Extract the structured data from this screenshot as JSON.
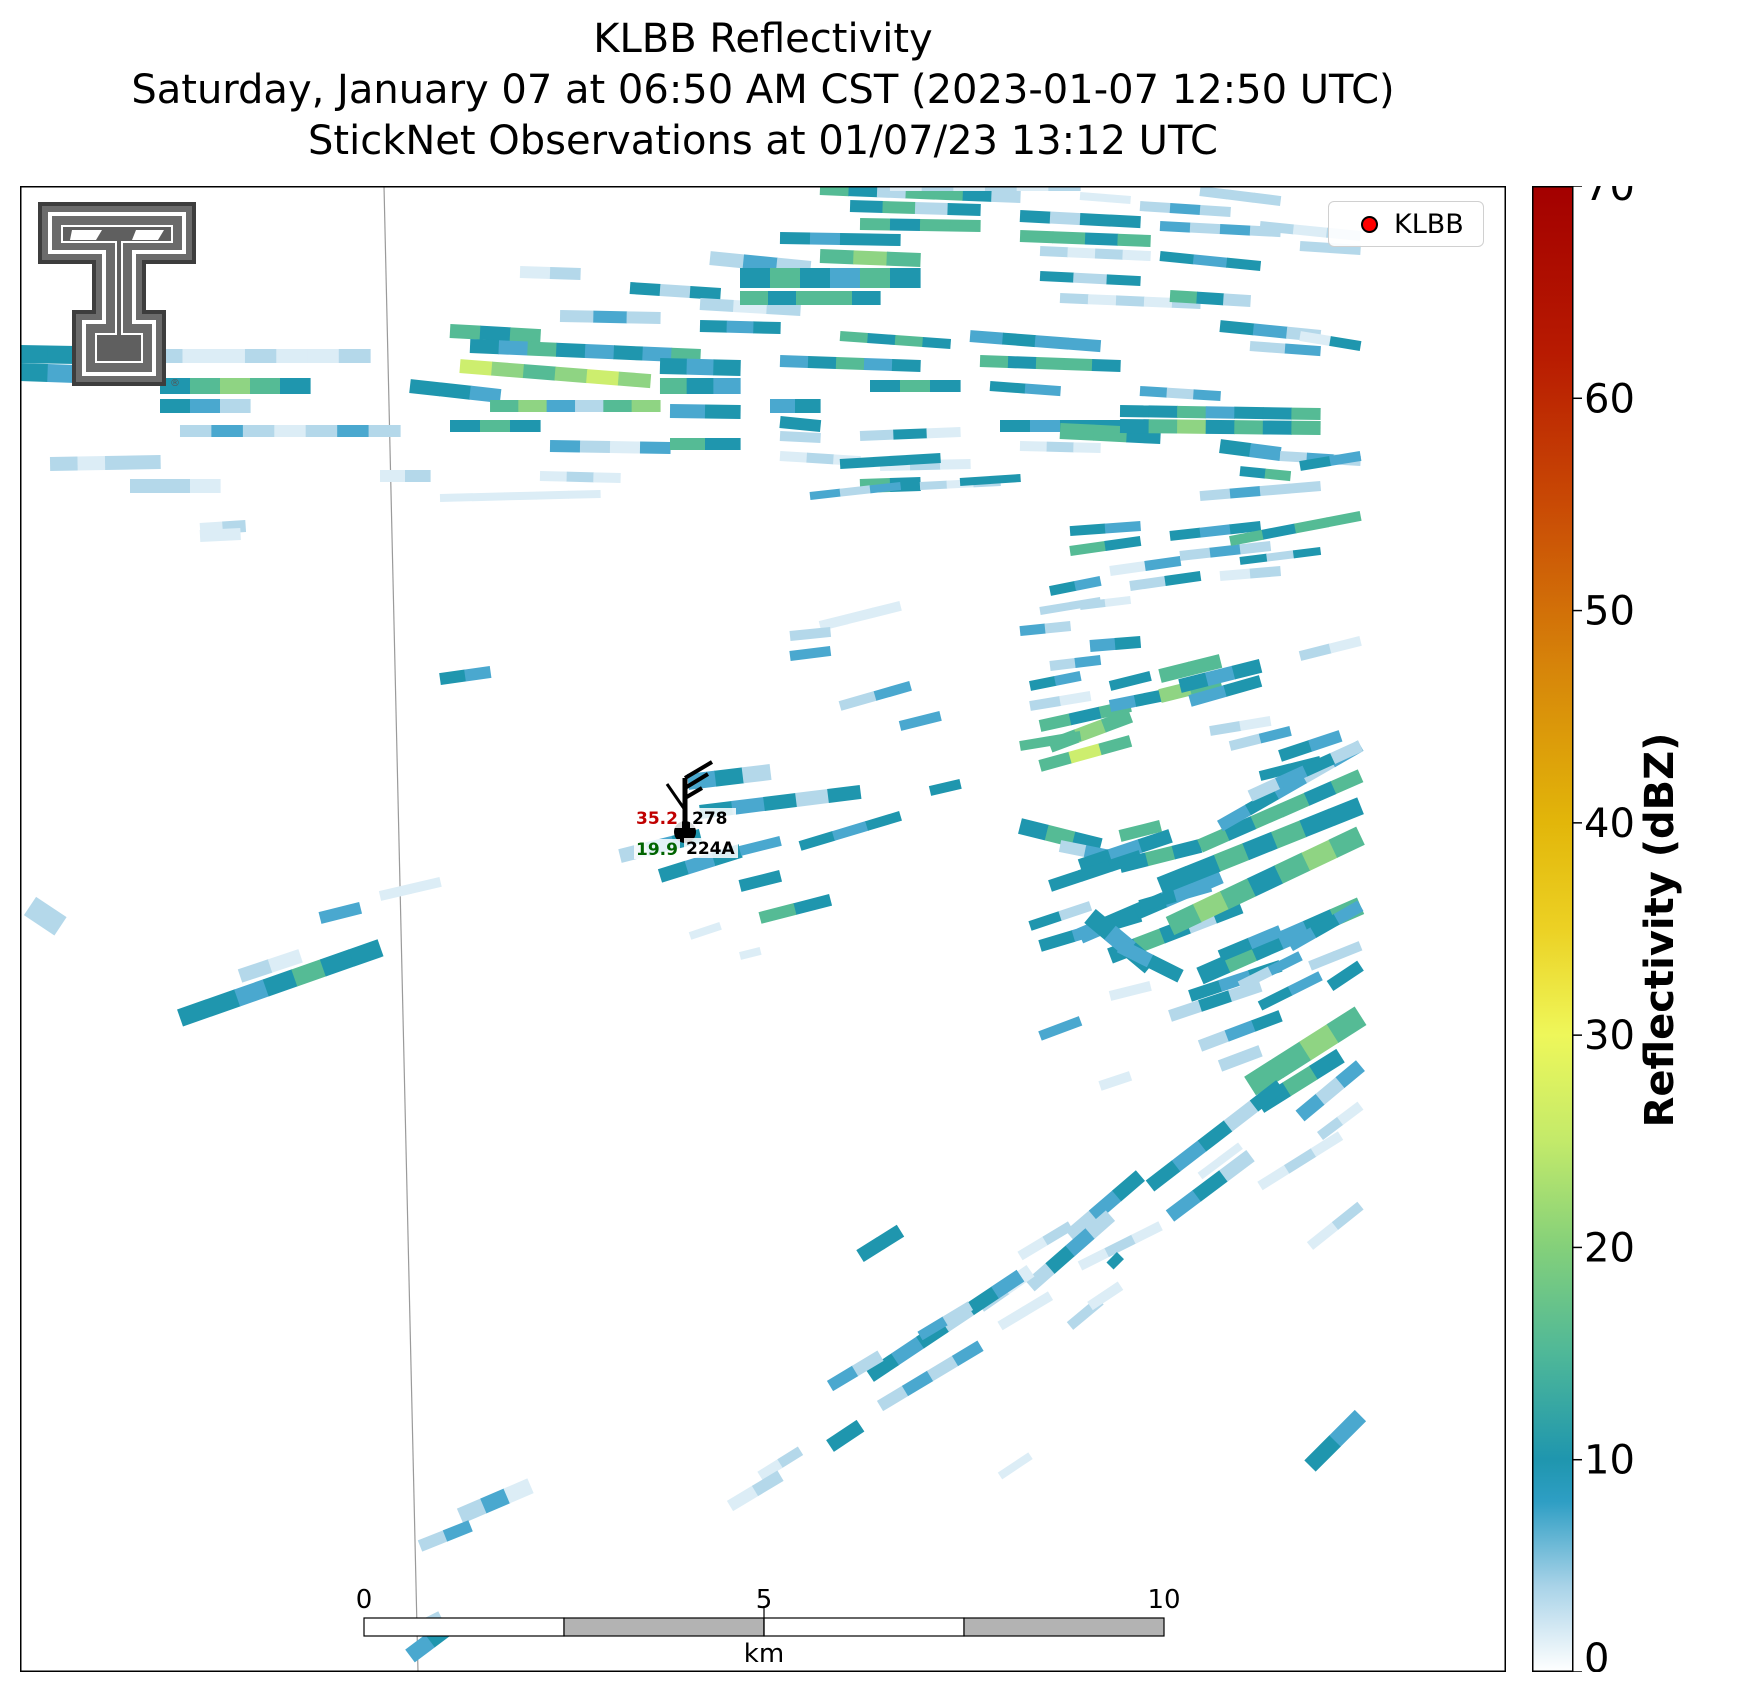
{
  "title": {
    "line1": "KLBB Reflectivity",
    "line2": "Saturday, January 07 at 06:50 AM CST (2023-01-07 12:50 UTC)",
    "line3": "StickNet Observations at 01/07/23 13:12 UTC"
  },
  "legend": {
    "label": "KLBB",
    "marker_color": "#ff0000"
  },
  "colorbar": {
    "label": "Reflectivity (dBZ)",
    "ticks": [
      "0",
      "10",
      "20",
      "30",
      "40",
      "50",
      "60",
      "70"
    ],
    "min": 0,
    "max": 70,
    "stops": [
      {
        "v": 0,
        "c": "#ffffff"
      },
      {
        "v": 4,
        "c": "#a9d3e8"
      },
      {
        "v": 8,
        "c": "#2e9ec4"
      },
      {
        "v": 10,
        "c": "#1f96ae"
      },
      {
        "v": 15,
        "c": "#4fb898"
      },
      {
        "v": 20,
        "c": "#84d07a"
      },
      {
        "v": 25,
        "c": "#c3ea6a"
      },
      {
        "v": 30,
        "c": "#eef75a"
      },
      {
        "v": 35,
        "c": "#ecd124"
      },
      {
        "v": 40,
        "c": "#e2b60a"
      },
      {
        "v": 47,
        "c": "#d7870a"
      },
      {
        "v": 55,
        "c": "#c94a05"
      },
      {
        "v": 62,
        "c": "#b81b01"
      },
      {
        "v": 70,
        "c": "#a30000"
      }
    ]
  },
  "station": {
    "temperature": "35.2",
    "dewpoint": "19.9",
    "id": "224A",
    "wind_direction": "278",
    "temperature_color": "#c00000",
    "dewpoint_color": "#006400"
  },
  "scalebar": {
    "ticks": [
      "0",
      "5",
      "10"
    ],
    "unit": "km"
  },
  "colors": {
    "light": "#b4d8ea",
    "vlight": "#dcedf6",
    "blue": "#4aa8cf",
    "teal": "#1f96ae",
    "green": "#55bb95",
    "lgreen": "#8fd483",
    "yellowgreen": "#cdee6e"
  }
}
